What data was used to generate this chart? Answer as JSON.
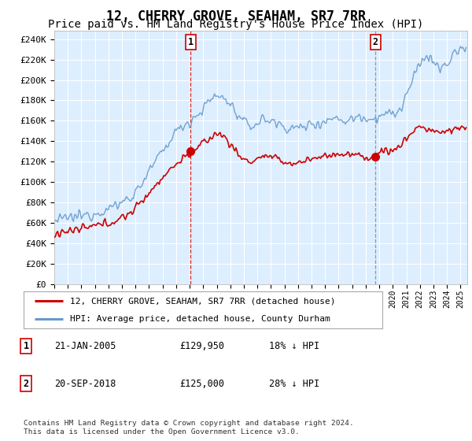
{
  "title": "12, CHERRY GROVE, SEAHAM, SR7 7RR",
  "subtitle": "Price paid vs. HM Land Registry's House Price Index (HPI)",
  "title_fontsize": 12,
  "subtitle_fontsize": 10,
  "background_color": "#ffffff",
  "plot_bg_color": "#ddeeff",
  "grid_color": "#ffffff",
  "hpi_color": "#6699cc",
  "price_color": "#cc0000",
  "sale1_date": 2005.06,
  "sale1_price": 129950,
  "sale1_label": "1",
  "sale2_date": 2018.72,
  "sale2_price": 125000,
  "sale2_label": "2",
  "ylabel_ticks": [
    0,
    20000,
    40000,
    60000,
    80000,
    100000,
    120000,
    140000,
    160000,
    180000,
    200000,
    220000,
    240000
  ],
  "ylabel_labels": [
    "£0",
    "£20K",
    "£40K",
    "£60K",
    "£80K",
    "£100K",
    "£120K",
    "£140K",
    "£160K",
    "£180K",
    "£200K",
    "£220K",
    "£240K"
  ],
  "xmin": 1995.0,
  "xmax": 2025.5,
  "ymin": 0,
  "ymax": 248000,
  "legend_line1": "12, CHERRY GROVE, SEAHAM, SR7 7RR (detached house)",
  "legend_line2": "HPI: Average price, detached house, County Durham",
  "table_row1": [
    "1",
    "21-JAN-2005",
    "£129,950",
    "18% ↓ HPI"
  ],
  "table_row2": [
    "2",
    "20-SEP-2018",
    "£125,000",
    "28% ↓ HPI"
  ],
  "footer": "Contains HM Land Registry data © Crown copyright and database right 2024.\nThis data is licensed under the Open Government Licence v3.0."
}
